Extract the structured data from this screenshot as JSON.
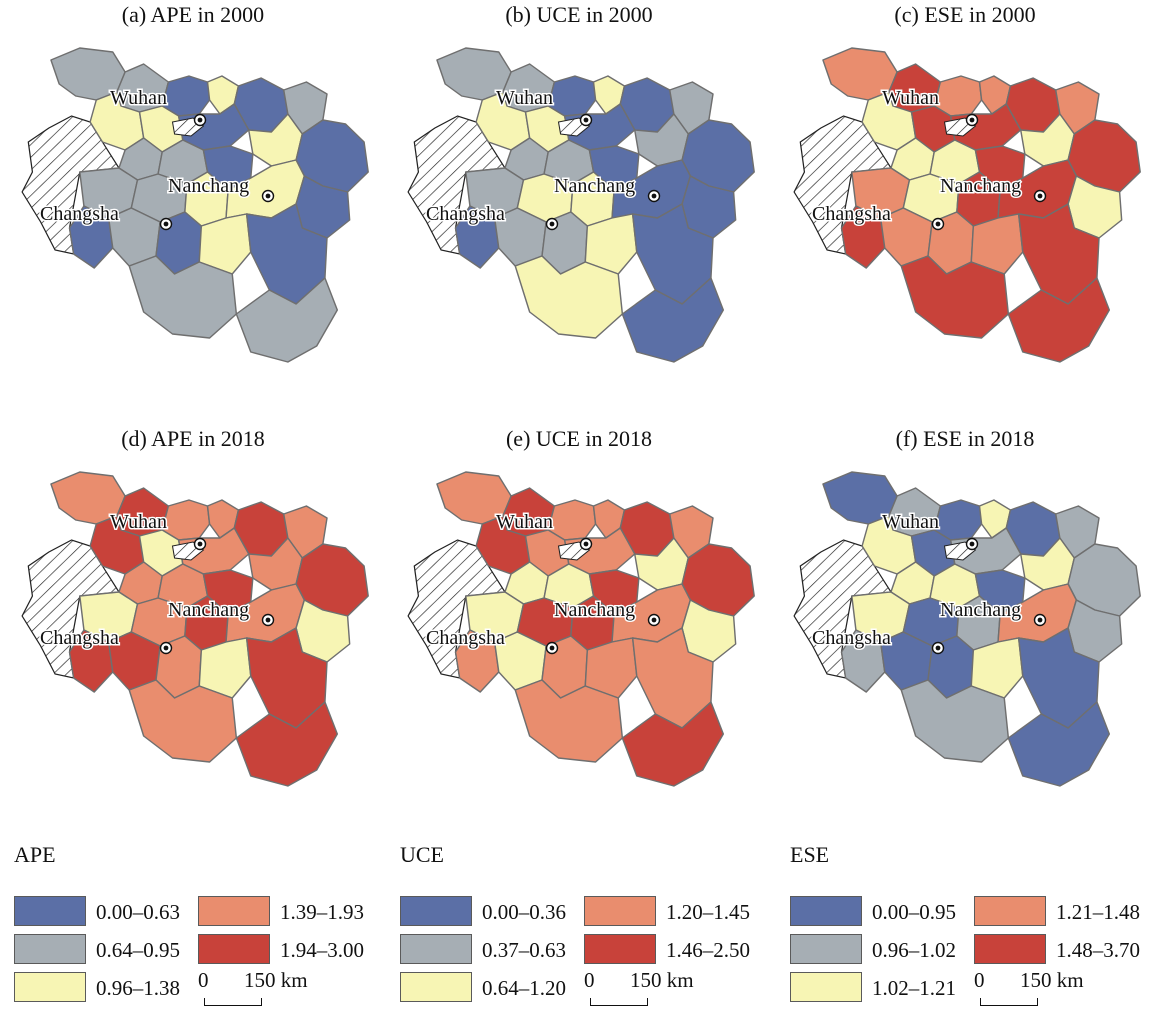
{
  "colors": {
    "blue": "#5b6fa6",
    "gray": "#a6aeb4",
    "yellow": "#f7f5b4",
    "salmon": "#e98d6e",
    "red": "#c8423a",
    "hatch": "#ffffff"
  },
  "cities": {
    "wuhan": "Wuhan",
    "nanchang": "Nanchang",
    "changsha": "Changsha"
  },
  "panels": [
    {
      "title": "(a) APE in 2000",
      "regions": [
        "gray",
        "gray",
        "blue",
        "yellow",
        "blue",
        "gray",
        "yellow",
        "yellow",
        "blue",
        "yellow",
        "gray",
        "gray",
        "blue",
        "blue",
        "gray",
        "gray",
        "yellow",
        "yellow",
        "blue",
        "blue",
        "gray",
        "blue",
        "yellow",
        "blue",
        "gray",
        "gray"
      ]
    },
    {
      "title": "(b) UCE in 2000",
      "regions": [
        "gray",
        "gray",
        "blue",
        "yellow",
        "blue",
        "gray",
        "yellow",
        "yellow",
        "blue",
        "gray",
        "gray",
        "gray",
        "blue",
        "blue",
        "gray",
        "yellow",
        "yellow",
        "blue",
        "blue",
        "blue",
        "gray",
        "gray",
        "yellow",
        "blue",
        "yellow",
        "blue"
      ]
    },
    {
      "title": "(c) ESE in 2000",
      "regions": [
        "salmon",
        "red",
        "salmon",
        "salmon",
        "red",
        "salmon",
        "yellow",
        "red",
        "red",
        "yellow",
        "yellow",
        "yellow",
        "red",
        "red",
        "salmon",
        "yellow",
        "red",
        "red",
        "yellow",
        "red",
        "salmon",
        "salmon",
        "salmon",
        "red",
        "red",
        "red"
      ]
    },
    {
      "title": "(d) APE in 2018",
      "regions": [
        "salmon",
        "red",
        "salmon",
        "salmon",
        "red",
        "salmon",
        "red",
        "yellow",
        "salmon",
        "salmon",
        "salmon",
        "salmon",
        "red",
        "red",
        "yellow",
        "salmon",
        "red",
        "salmon",
        "yellow",
        "red",
        "red",
        "salmon",
        "yellow",
        "red",
        "salmon",
        "red"
      ]
    },
    {
      "title": "(e) UCE in 2018",
      "regions": [
        "salmon",
        "red",
        "salmon",
        "salmon",
        "red",
        "salmon",
        "red",
        "salmon",
        "salmon",
        "yellow",
        "yellow",
        "yellow",
        "red",
        "red",
        "yellow",
        "red",
        "red",
        "salmon",
        "yellow",
        "salmon",
        "yellow",
        "salmon",
        "salmon",
        "salmon",
        "salmon",
        "red"
      ]
    },
    {
      "title": "(f) ESE in 2018",
      "regions": [
        "blue",
        "gray",
        "blue",
        "yellow",
        "blue",
        "gray",
        "yellow",
        "blue",
        "gray",
        "yellow",
        "yellow",
        "yellow",
        "blue",
        "gray",
        "yellow",
        "blue",
        "gray",
        "salmon",
        "gray",
        "gray",
        "blue",
        "blue",
        "yellow",
        "blue",
        "gray",
        "blue"
      ]
    }
  ],
  "legends": [
    {
      "title": "APE",
      "items": [
        {
          "label": "0.00–0.63",
          "color": "blue"
        },
        {
          "label": "0.64–0.95",
          "color": "gray"
        },
        {
          "label": "0.96–1.38",
          "color": "yellow"
        },
        {
          "label": "1.39–1.93",
          "color": "salmon"
        },
        {
          "label": "1.94–3.00",
          "color": "red"
        }
      ]
    },
    {
      "title": "UCE",
      "items": [
        {
          "label": "0.00–0.36",
          "color": "blue"
        },
        {
          "label": "0.37–0.63",
          "color": "gray"
        },
        {
          "label": "0.64–1.20",
          "color": "yellow"
        },
        {
          "label": "1.20–1.45",
          "color": "salmon"
        },
        {
          "label": "1.46–2.50",
          "color": "red"
        }
      ]
    },
    {
      "title": "ESE",
      "items": [
        {
          "label": "0.00–0.95",
          "color": "blue"
        },
        {
          "label": "0.96–1.02",
          "color": "gray"
        },
        {
          "label": "1.02–1.21",
          "color": "yellow"
        },
        {
          "label": "1.21–1.48",
          "color": "salmon"
        },
        {
          "label": "1.48–3.70",
          "color": "red"
        }
      ]
    }
  ],
  "scalebar": {
    "zero": "0",
    "length": "150 km"
  }
}
